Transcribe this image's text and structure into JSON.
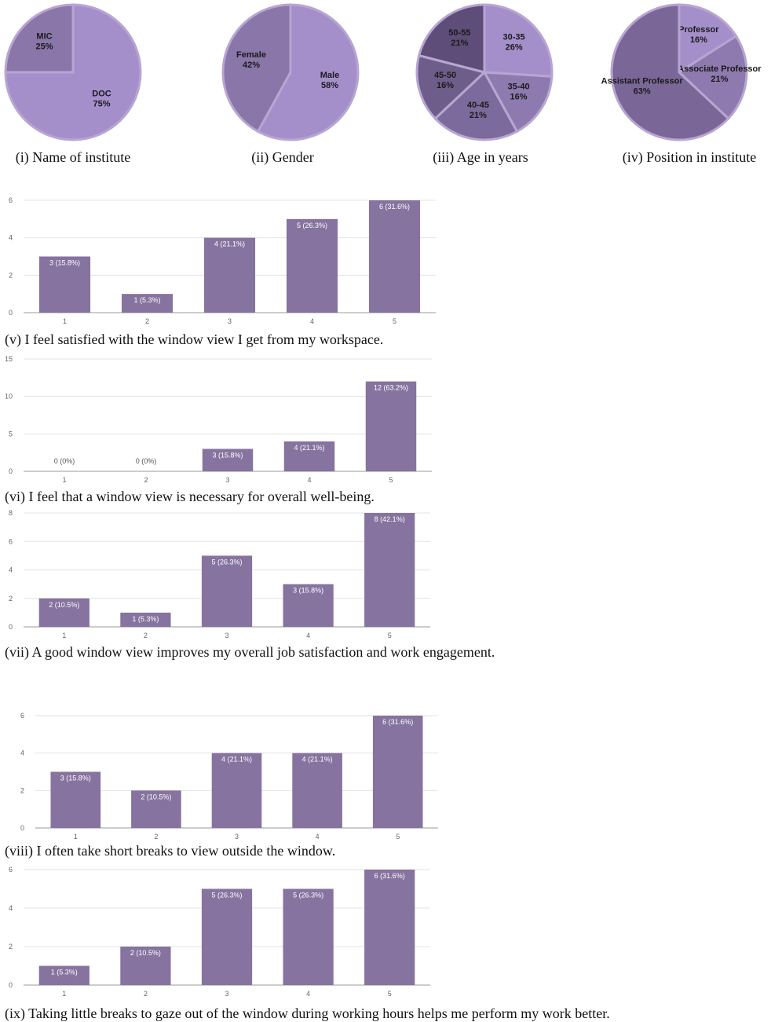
{
  "chart_data": [
    {
      "type": "pie",
      "caption": "(i) Name of institute",
      "categories": [
        "DOC",
        "MIC"
      ],
      "values": [
        75,
        25
      ],
      "value_labels": [
        "75%",
        "25%"
      ],
      "colors": [
        "#a58fcb",
        "#8a76a8"
      ]
    },
    {
      "type": "pie",
      "caption": "(ii) Gender",
      "categories": [
        "Male",
        "Female"
      ],
      "values": [
        58,
        42
      ],
      "value_labels": [
        "58%",
        "42%"
      ],
      "colors": [
        "#a58fcb",
        "#8a76a8"
      ]
    },
    {
      "type": "pie",
      "caption": "(iii) Age in years",
      "categories": [
        "30-35",
        "35-40",
        "40-45",
        "45-50",
        "50-55"
      ],
      "values": [
        26,
        16,
        21,
        16,
        21
      ],
      "value_labels": [
        "26%",
        "16%",
        "21%",
        "16%",
        "21%"
      ],
      "colors": [
        "#a58fcb",
        "#8e7aae",
        "#7d6a9c",
        "#6e5d8a",
        "#5d4d78"
      ]
    },
    {
      "type": "pie",
      "caption": "(iv) Position in institute",
      "categories": [
        "Professor",
        "Associate Professor",
        "Assistant Professor"
      ],
      "values": [
        16,
        21,
        63
      ],
      "value_labels": [
        "16%",
        "21%",
        "63%"
      ],
      "colors": [
        "#a58fcb",
        "#8e7aae",
        "#7a6797"
      ]
    },
    {
      "type": "bar",
      "caption": "(v) I feel satisfied with the window view I get from my workspace.",
      "categories": [
        "1",
        "2",
        "3",
        "4",
        "5"
      ],
      "values": [
        3,
        1,
        4,
        5,
        6
      ],
      "value_labels": [
        "3 (15.8%)",
        "1 (5.3%)",
        "4 (21.1%)",
        "5 (26.3%)",
        "6 (31.6%)"
      ],
      "color": "#86739f",
      "ylim": [
        0,
        6
      ],
      "yticks": [
        0,
        2,
        4,
        6
      ],
      "grid": true
    },
    {
      "type": "bar",
      "caption": "(vi) I feel that a window view is necessary for overall well-being.",
      "categories": [
        "1",
        "2",
        "3",
        "4",
        "5"
      ],
      "values": [
        0,
        0,
        3,
        4,
        12
      ],
      "value_labels": [
        "0 (0%)",
        "0 (0%)",
        "3 (15.8%)",
        "4 (21.1%)",
        "12 (63.2%)"
      ],
      "color": "#86739f",
      "ylim": [
        0,
        15
      ],
      "yticks": [
        0,
        5,
        10,
        15
      ],
      "grid": true
    },
    {
      "type": "bar",
      "caption": "(vii) A good window view improves my overall job satisfaction and work engagement.",
      "categories": [
        "1",
        "2",
        "3",
        "4",
        "5"
      ],
      "values": [
        2,
        1,
        5,
        3,
        8
      ],
      "value_labels": [
        "2 (10.5%)",
        "1 (5.3%)",
        "5 (26.3%)",
        "3 (15.8%)",
        "8 (42.1%)"
      ],
      "color": "#86739f",
      "ylim": [
        0,
        8
      ],
      "yticks": [
        0,
        2,
        4,
        6,
        8
      ],
      "grid": true
    },
    {
      "type": "bar",
      "caption": "(viii) I often take short breaks to view outside the window.",
      "categories": [
        "1",
        "2",
        "3",
        "4",
        "5"
      ],
      "values": [
        3,
        2,
        4,
        4,
        6
      ],
      "value_labels": [
        "3 (15.8%)",
        "2 (10.5%)",
        "4 (21.1%)",
        "4 (21.1%)",
        "6 (31.6%)"
      ],
      "color": "#86739f",
      "ylim": [
        0,
        6
      ],
      "yticks": [
        0,
        2,
        4,
        6
      ],
      "grid": true
    },
    {
      "type": "bar",
      "caption": "(ix) Taking little breaks to gaze out of the window during working hours helps me perform my work better.",
      "categories": [
        "1",
        "2",
        "3",
        "4",
        "5"
      ],
      "values": [
        1,
        2,
        5,
        5,
        6
      ],
      "value_labels": [
        "1 (5.3%)",
        "2 (10.5%)",
        "5 (26.3%)",
        "5 (26.3%)",
        "6 (31.6%)"
      ],
      "color": "#86739f",
      "ylim": [
        0,
        6
      ],
      "yticks": [
        0,
        2,
        4,
        6
      ],
      "grid": true
    }
  ]
}
